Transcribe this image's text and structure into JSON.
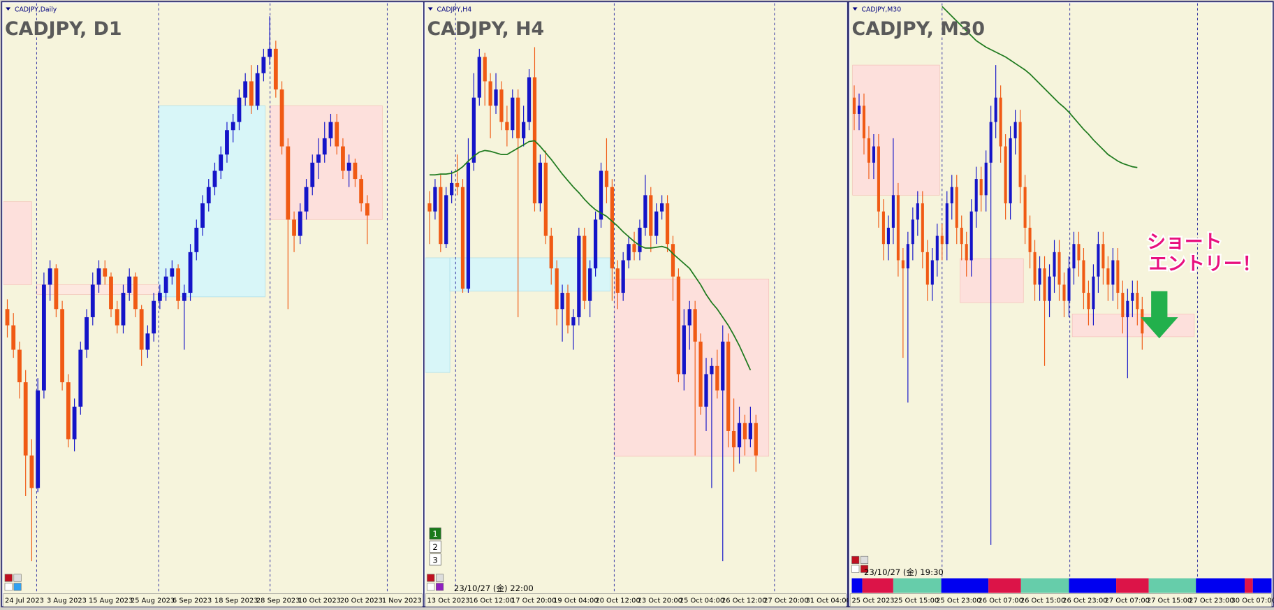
{
  "chart_data": [
    {
      "type": "candlestick",
      "label": "CADJPY,Daily",
      "title": "CADJPY, D1",
      "ylim": [
        0,
        726
      ],
      "up_color": "#1414c8",
      "down_color": "#f05a14",
      "x_labels": [
        "24 Jul 2023",
        "3 Aug 2023",
        "15 Aug 2023",
        "25 Aug 2023",
        "6 Sep 2023",
        "18 Sep 2023",
        "28 Sep 2023",
        "10 Oct 2023",
        "20 Oct 2023",
        "1 Nov 2023"
      ],
      "open": [
        350,
        330,
        300,
        260,
        170,
        130,
        250,
        380,
        400,
        350,
        260,
        190,
        230,
        300,
        340,
        380,
        400,
        390,
        350,
        330,
        370,
        390,
        350,
        300,
        320,
        360,
        370,
        390,
        400,
        360,
        370,
        420,
        450,
        480,
        500,
        520,
        540,
        570,
        580,
        610,
        630,
        600,
        640,
        660,
        670,
        620,
        550,
        460,
        440,
        470,
        500,
        530,
        540,
        560,
        580,
        550,
        520,
        530,
        510,
        480
      ],
      "high": [
        362,
        345,
        310,
        275,
        190,
        265,
        395,
        410,
        405,
        360,
        270,
        240,
        310,
        350,
        395,
        410,
        410,
        395,
        360,
        380,
        400,
        395,
        355,
        330,
        370,
        380,
        400,
        410,
        405,
        380,
        430,
        460,
        490,
        510,
        530,
        550,
        580,
        590,
        620,
        640,
        650,
        650,
        670,
        710,
        680,
        630,
        560,
        470,
        480,
        510,
        540,
        560,
        580,
        590,
        590,
        560,
        540,
        535,
        515,
        490
      ],
      "low": [
        315,
        290,
        240,
        120,
        40,
        125,
        240,
        360,
        340,
        250,
        180,
        175,
        220,
        290,
        330,
        370,
        380,
        340,
        320,
        320,
        360,
        340,
        280,
        290,
        310,
        350,
        360,
        380,
        350,
        300,
        360,
        410,
        440,
        470,
        490,
        510,
        530,
        555,
        570,
        600,
        590,
        595,
        630,
        650,
        610,
        540,
        350,
        420,
        430,
        460,
        490,
        510,
        530,
        550,
        540,
        510,
        500,
        500,
        470,
        430
      ],
      "close": [
        330,
        300,
        260,
        170,
        130,
        250,
        380,
        400,
        350,
        260,
        190,
        230,
        300,
        340,
        380,
        400,
        390,
        350,
        330,
        370,
        390,
        350,
        300,
        320,
        360,
        370,
        390,
        400,
        360,
        370,
        420,
        450,
        480,
        500,
        520,
        540,
        570,
        580,
        610,
        630,
        600,
        640,
        660,
        670,
        620,
        550,
        460,
        440,
        470,
        500,
        530,
        540,
        560,
        580,
        550,
        520,
        530,
        510,
        480,
        465
      ]
    },
    {
      "type": "candlestick",
      "label": "CADJPY,H4",
      "title": "CADJPY, H4",
      "ylim": [
        0,
        726
      ],
      "up_color": "#1414c8",
      "down_color": "#f05a14",
      "x_labels": [
        "13 Oct 2023",
        "16 Oct 12:00",
        "17 Oct 20:00",
        "19 Oct 04:00",
        "20 Oct 12:00",
        "23 Oct 20:00",
        "25 Oct 04:00",
        "26 Oct 12:00",
        "27 Oct 20:00",
        "31 Oct 04:00"
      ],
      "open": [
        480,
        470,
        500,
        430,
        490,
        505,
        500,
        375,
        530,
        610,
        660,
        630,
        600,
        620,
        580,
        570,
        610,
        560,
        580,
        635,
        480,
        530,
        440,
        400,
        350,
        370,
        330,
        340,
        440,
        360,
        400,
        460,
        520,
        500,
        400,
        370,
        410,
        430,
        420,
        450,
        490,
        440,
        470,
        480,
        430,
        390,
        270,
        330,
        350,
        310,
        230,
        270,
        280,
        250,
        310,
        200,
        180,
        210,
        190,
        210
      ],
      "high": [
        495,
        510,
        515,
        500,
        520,
        540,
        510,
        560,
        640,
        670,
        665,
        640,
        640,
        630,
        600,
        620,
        620,
        600,
        645,
        672,
        540,
        545,
        450,
        410,
        380,
        380,
        350,
        450,
        450,
        410,
        470,
        530,
        560,
        510,
        410,
        420,
        440,
        445,
        460,
        515,
        500,
        480,
        490,
        490,
        440,
        400,
        350,
        360,
        360,
        320,
        290,
        290,
        300,
        330,
        320,
        240,
        230,
        220,
        230,
        220
      ],
      "low": [
        430,
        460,
        420,
        425,
        480,
        490,
        370,
        370,
        520,
        600,
        600,
        560,
        590,
        570,
        550,
        560,
        340,
        550,
        570,
        470,
        470,
        430,
        380,
        330,
        310,
        320,
        300,
        330,
        350,
        340,
        390,
        450,
        480,
        360,
        350,
        360,
        400,
        410,
        410,
        440,
        420,
        430,
        460,
        420,
        360,
        260,
        250,
        300,
        170,
        220,
        200,
        130,
        240,
        40,
        180,
        150,
        160,
        170,
        180,
        150
      ],
      "close": [
        470,
        500,
        430,
        490,
        505,
        500,
        375,
        530,
        610,
        660,
        630,
        600,
        620,
        580,
        570,
        610,
        560,
        580,
        635,
        480,
        530,
        440,
        400,
        350,
        370,
        330,
        340,
        440,
        360,
        400,
        460,
        520,
        500,
        400,
        370,
        410,
        430,
        420,
        450,
        490,
        440,
        470,
        480,
        430,
        390,
        270,
        330,
        350,
        310,
        230,
        270,
        280,
        250,
        310,
        200,
        180,
        210,
        190,
        210,
        170
      ],
      "ma": {
        "color": "#1e7a1e",
        "values": [
          515,
          515,
          516,
          516,
          517,
          520,
          525,
          532,
          538,
          543,
          545,
          544,
          542,
          540,
          540,
          544,
          548,
          552,
          556,
          557,
          550,
          542,
          534,
          525,
          516,
          508,
          500,
          493,
          485,
          478,
          472,
          468,
          464,
          458,
          452,
          445,
          439,
          433,
          428,
          425,
          425,
          426,
          427,
          425,
          418,
          412,
          406,
          400,
          390,
          380,
          368,
          358,
          350,
          340,
          330,
          318,
          305,
          290,
          275,
          null
        ]
      },
      "buttons": [
        "1",
        "2",
        "3"
      ],
      "time_label": "23/10/27 (金) 22:00"
    },
    {
      "type": "candlestick",
      "label": "CADJPY,M30",
      "title": "CADJPY, M30",
      "ylim": [
        0,
        726
      ],
      "up_color": "#1414c8",
      "down_color": "#f05a14",
      "x_labels": [
        "25 Oct 2023",
        "25 Oct 15:00",
        "25 Oct 23:00",
        "26 Oct 07:00",
        "26 Oct 15:00",
        "26 Oct 23:00",
        "27 Oct 07:00",
        "27 Oct 15:00",
        "27 Oct 23:00",
        "30 Oct 07:00"
      ],
      "open": [
        610,
        590,
        600,
        560,
        530,
        550,
        470,
        430,
        450,
        490,
        410,
        400,
        430,
        460,
        480,
        420,
        380,
        410,
        440,
        430,
        480,
        500,
        450,
        430,
        410,
        470,
        510,
        490,
        530,
        580,
        610,
        550,
        480,
        560,
        580,
        500,
        450,
        420,
        380,
        400,
        360,
        390,
        420,
        380,
        360,
        400,
        430,
        410,
        370,
        350,
        390,
        430,
        400,
        380,
        410,
        370,
        340,
        360,
        370,
        350
      ],
      "high": [
        625,
        615,
        615,
        575,
        565,
        565,
        485,
        465,
        560,
        505,
        425,
        445,
        475,
        495,
        495,
        435,
        425,
        455,
        455,
        495,
        515,
        515,
        465,
        445,
        485,
        525,
        525,
        545,
        600,
        650,
        625,
        565,
        575,
        595,
        595,
        515,
        465,
        435,
        415,
        415,
        405,
        435,
        435,
        395,
        415,
        445,
        445,
        425,
        385,
        405,
        445,
        445,
        415,
        425,
        425,
        385,
        375,
        385,
        385,
        365
      ],
      "low": [
        570,
        570,
        540,
        510,
        510,
        450,
        410,
        410,
        430,
        390,
        290,
        235,
        410,
        440,
        400,
        360,
        360,
        390,
        410,
        410,
        460,
        430,
        410,
        390,
        390,
        450,
        470,
        470,
        60,
        560,
        530,
        460,
        460,
        540,
        480,
        430,
        400,
        360,
        360,
        280,
        340,
        370,
        360,
        340,
        340,
        380,
        390,
        350,
        330,
        330,
        370,
        380,
        360,
        360,
        350,
        320,
        265,
        340,
        330,
        300
      ],
      "close": [
        590,
        600,
        560,
        530,
        550,
        470,
        430,
        450,
        490,
        410,
        400,
        430,
        460,
        480,
        420,
        380,
        410,
        440,
        430,
        480,
        500,
        450,
        430,
        410,
        470,
        510,
        490,
        530,
        580,
        610,
        550,
        480,
        560,
        580,
        500,
        450,
        420,
        380,
        400,
        360,
        390,
        420,
        380,
        360,
        400,
        430,
        410,
        370,
        350,
        390,
        430,
        400,
        380,
        410,
        370,
        340,
        360,
        370,
        350,
        320
      ],
      "ma": {
        "color": "#1e7a1e",
        "values": [
          null,
          null,
          null,
          null,
          null,
          null,
          null,
          null,
          null,
          null,
          null,
          null,
          null,
          null,
          null,
          null,
          null,
          null,
          722,
          716,
          710,
          704,
          698,
          692,
          686,
          680,
          676,
          672,
          669,
          666,
          663,
          660,
          656,
          652,
          648,
          644,
          639,
          633,
          627,
          621,
          615,
          609,
          603,
          598,
          592,
          585,
          578,
          571,
          565,
          558,
          552,
          546,
          540,
          536,
          532,
          529,
          527,
          525,
          524,
          null
        ]
      },
      "time_label": "23/10/27 (金) 19:30",
      "annotation": [
        "ショート",
        "エントリー！"
      ]
    }
  ]
}
